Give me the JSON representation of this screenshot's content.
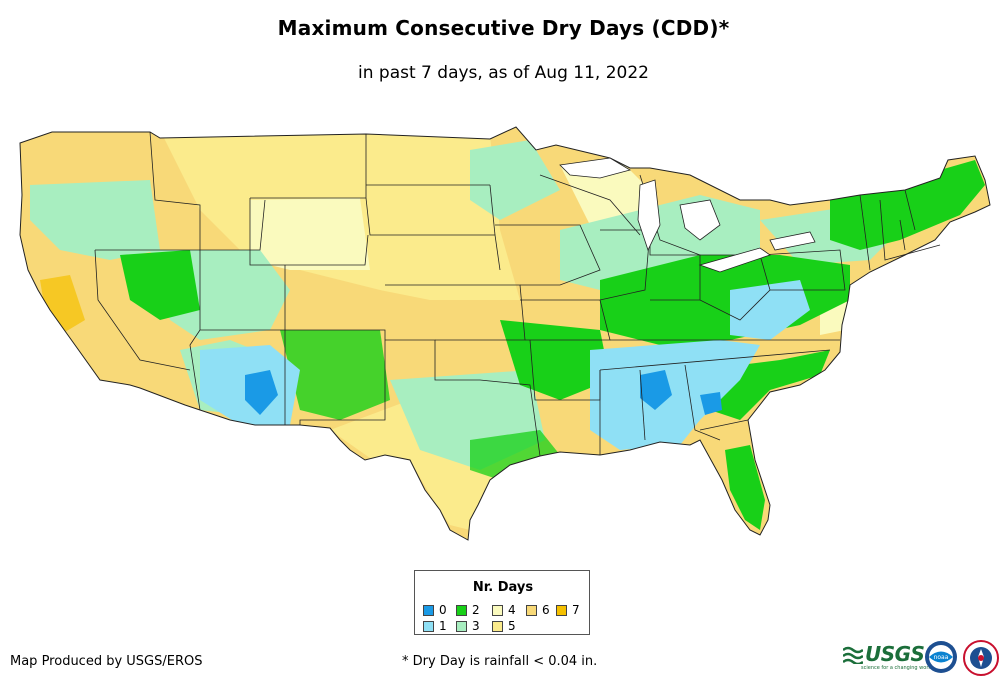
{
  "title": "Maximum Consecutive Dry Days (CDD)*",
  "subtitle": "in past 7 days, as of Aug 11, 2022",
  "legend": {
    "title": "Nr. Days",
    "items": [
      {
        "label": "0",
        "color": "#1a9ae6"
      },
      {
        "label": "1",
        "color": "#8fe0f5"
      },
      {
        "label": "2",
        "color": "#18d018"
      },
      {
        "label": "3",
        "color": "#a8eec0"
      },
      {
        "label": "4",
        "color": "#fafabe"
      },
      {
        "label": "5",
        "color": "#fbeb8c"
      },
      {
        "label": "6",
        "color": "#f8d978"
      },
      {
        "label": "7",
        "color": "#f5c000"
      }
    ]
  },
  "footer": {
    "producer": "Map Produced by USGS/EROS",
    "footnote": "* Dry Day is rainfall < 0.04 in."
  },
  "logos": {
    "usgs_text": "USGS",
    "usgs_tagline": "science for a changing world",
    "noaa_text": "noaa"
  }
}
